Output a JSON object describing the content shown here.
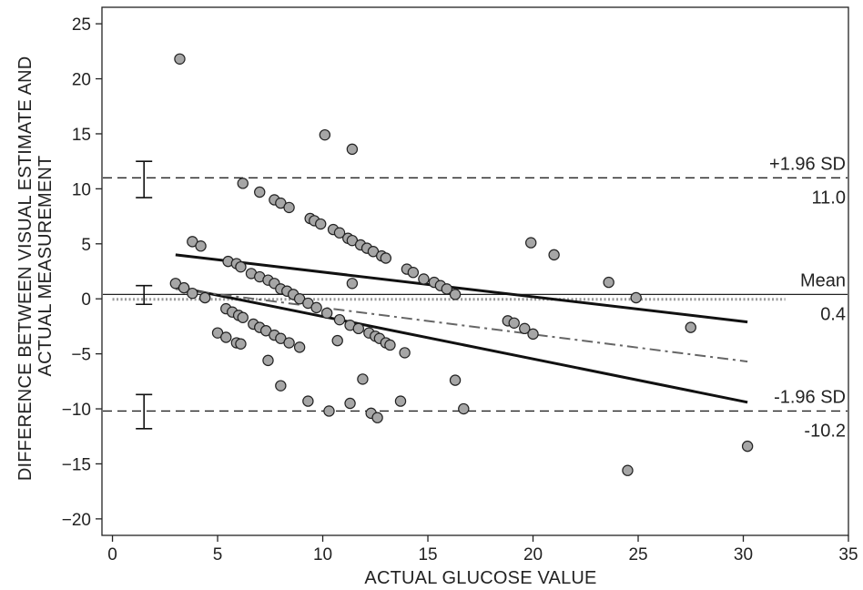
{
  "chart_data": {
    "type": "scatter",
    "title": "",
    "xlabel": "ACTUAL GLUCOSE VALUE",
    "ylabel": [
      "DIFFERENCE BETWEEN VISUAL ESTIMATE AND",
      "ACTUAL MEASUREMENT"
    ],
    "xlim": [
      -0.5,
      35
    ],
    "ylim": [
      -21.5,
      26.5
    ],
    "x_ticks": [
      0,
      5,
      10,
      15,
      20,
      25,
      30,
      35
    ],
    "y_ticks": [
      25,
      20,
      15,
      10,
      5,
      0,
      -5,
      -10,
      -15,
      -20
    ],
    "x_tick_labels": [
      "0",
      "5",
      "10",
      "15",
      "20",
      "25",
      "30",
      "35"
    ],
    "y_tick_labels": [
      "25",
      "20",
      "15",
      "10",
      "5",
      "0",
      "−5",
      "−10",
      "−15",
      "−20"
    ],
    "grid": false,
    "points": [
      {
        "x": 3.2,
        "y": 21.8
      },
      {
        "x": 3.8,
        "y": 5.2
      },
      {
        "x": 4.2,
        "y": 4.8
      },
      {
        "x": 3.0,
        "y": 1.4
      },
      {
        "x": 3.4,
        "y": 1.0
      },
      {
        "x": 3.8,
        "y": 0.5
      },
      {
        "x": 4.4,
        "y": 0.1
      },
      {
        "x": 5.0,
        "y": -3.1
      },
      {
        "x": 5.4,
        "y": -3.5
      },
      {
        "x": 5.9,
        "y": -4.0
      },
      {
        "x": 6.1,
        "y": -4.1
      },
      {
        "x": 5.5,
        "y": 3.4
      },
      {
        "x": 5.9,
        "y": 3.2
      },
      {
        "x": 6.1,
        "y": 2.9
      },
      {
        "x": 6.6,
        "y": 2.3
      },
      {
        "x": 7.0,
        "y": 2.0
      },
      {
        "x": 7.4,
        "y": 1.7
      },
      {
        "x": 7.7,
        "y": 1.4
      },
      {
        "x": 8.0,
        "y": 0.9
      },
      {
        "x": 8.3,
        "y": 0.7
      },
      {
        "x": 8.6,
        "y": 0.4
      },
      {
        "x": 8.9,
        "y": 0.0
      },
      {
        "x": 9.3,
        "y": -0.4
      },
      {
        "x": 9.7,
        "y": -0.8
      },
      {
        "x": 10.2,
        "y": -1.3
      },
      {
        "x": 5.4,
        "y": -0.9
      },
      {
        "x": 5.7,
        "y": -1.2
      },
      {
        "x": 6.0,
        "y": -1.5
      },
      {
        "x": 6.2,
        "y": -1.7
      },
      {
        "x": 6.7,
        "y": -2.3
      },
      {
        "x": 7.0,
        "y": -2.6
      },
      {
        "x": 7.3,
        "y": -2.9
      },
      {
        "x": 7.7,
        "y": -3.3
      },
      {
        "x": 8.0,
        "y": -3.6
      },
      {
        "x": 8.4,
        "y": -4.0
      },
      {
        "x": 8.9,
        "y": -4.4
      },
      {
        "x": 7.4,
        "y": -5.6
      },
      {
        "x": 8.0,
        "y": -7.9
      },
      {
        "x": 6.2,
        "y": 10.5
      },
      {
        "x": 7.0,
        "y": 9.7
      },
      {
        "x": 7.7,
        "y": 9.0
      },
      {
        "x": 8.0,
        "y": 8.7
      },
      {
        "x": 8.4,
        "y": 8.3
      },
      {
        "x": 9.4,
        "y": 7.3
      },
      {
        "x": 9.6,
        "y": 7.1
      },
      {
        "x": 9.9,
        "y": 6.8
      },
      {
        "x": 10.5,
        "y": 6.3
      },
      {
        "x": 10.8,
        "y": 6.0
      },
      {
        "x": 11.2,
        "y": 5.5
      },
      {
        "x": 11.4,
        "y": 5.3
      },
      {
        "x": 11.8,
        "y": 4.9
      },
      {
        "x": 12.1,
        "y": 4.6
      },
      {
        "x": 12.4,
        "y": 4.3
      },
      {
        "x": 12.8,
        "y": 3.9
      },
      {
        "x": 13.0,
        "y": 3.7
      },
      {
        "x": 10.1,
        "y": 14.9
      },
      {
        "x": 11.4,
        "y": 13.6
      },
      {
        "x": 11.4,
        "y": 1.4
      },
      {
        "x": 14.0,
        "y": 2.7
      },
      {
        "x": 14.3,
        "y": 2.4
      },
      {
        "x": 14.8,
        "y": 1.8
      },
      {
        "x": 15.3,
        "y": 1.5
      },
      {
        "x": 15.6,
        "y": 1.2
      },
      {
        "x": 15.9,
        "y": 0.9
      },
      {
        "x": 16.3,
        "y": 0.4
      },
      {
        "x": 10.8,
        "y": -1.9
      },
      {
        "x": 11.3,
        "y": -2.4
      },
      {
        "x": 11.7,
        "y": -2.7
      },
      {
        "x": 12.2,
        "y": -3.1
      },
      {
        "x": 12.5,
        "y": -3.4
      },
      {
        "x": 12.7,
        "y": -3.6
      },
      {
        "x": 13.0,
        "y": -4.0
      },
      {
        "x": 13.2,
        "y": -4.2
      },
      {
        "x": 13.9,
        "y": -4.9
      },
      {
        "x": 10.7,
        "y": -3.8
      },
      {
        "x": 9.3,
        "y": -9.3
      },
      {
        "x": 10.3,
        "y": -10.2
      },
      {
        "x": 11.3,
        "y": -9.5
      },
      {
        "x": 11.9,
        "y": -7.3
      },
      {
        "x": 12.3,
        "y": -10.4
      },
      {
        "x": 12.6,
        "y": -10.8
      },
      {
        "x": 13.7,
        "y": -9.3
      },
      {
        "x": 16.3,
        "y": -7.4
      },
      {
        "x": 16.7,
        "y": -10.0
      },
      {
        "x": 18.8,
        "y": -2.0
      },
      {
        "x": 19.1,
        "y": -2.2
      },
      {
        "x": 19.6,
        "y": -2.7
      },
      {
        "x": 20.0,
        "y": -3.2
      },
      {
        "x": 19.9,
        "y": 5.1
      },
      {
        "x": 21.0,
        "y": 4.0
      },
      {
        "x": 23.6,
        "y": 1.5
      },
      {
        "x": 24.9,
        "y": 0.1
      },
      {
        "x": 27.5,
        "y": -2.6
      },
      {
        "x": 24.5,
        "y": -15.6
      },
      {
        "x": 30.2,
        "y": -13.4
      }
    ],
    "reference_lines": [
      {
        "label": "+1.96 SD",
        "value": 11.0,
        "value_label": "11.0",
        "style": "dashed"
      },
      {
        "label": "Mean",
        "value": 0.4,
        "value_label": "0.4",
        "style": "solid"
      },
      {
        "label": "-1.96 SD",
        "value": -10.2,
        "value_label": "-10.2",
        "style": "dashed"
      }
    ],
    "zero_line": {
      "y": 0,
      "x_range": [
        0,
        32
      ],
      "style": "dotted"
    },
    "error_bars": [
      {
        "x": 1.5,
        "low": 9.2,
        "high": 12.5
      },
      {
        "x": 1.5,
        "low": -0.5,
        "high": 1.2
      },
      {
        "x": 1.5,
        "low": -11.8,
        "high": -8.7
      }
    ],
    "regression": {
      "x": [
        3,
        30.2
      ],
      "y": [
        0.9,
        -5.7
      ],
      "style": "dash-dot"
    },
    "confidence_band": [
      {
        "x": [
          3,
          30.2
        ],
        "y": [
          4.0,
          -2.1
        ]
      },
      {
        "x": [
          3,
          30.2
        ],
        "y": [
          1.1,
          -9.4
        ]
      }
    ],
    "colors": {
      "point_fill": "#a6a6a6",
      "point_stroke": "#222222",
      "regression": "#666666",
      "zero_line": "#999999",
      "band": "#111111"
    }
  }
}
